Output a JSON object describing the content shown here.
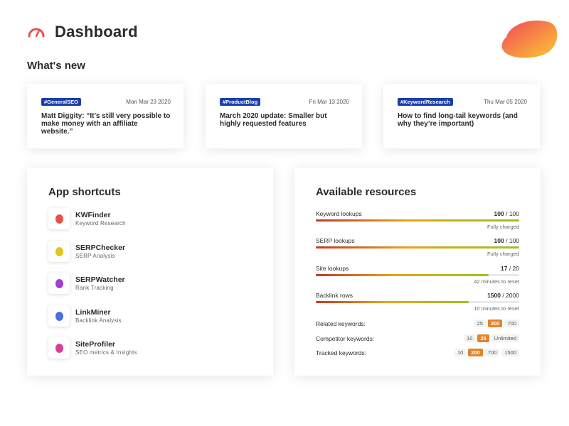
{
  "header": {
    "title": "Dashboard",
    "icon": "speedometer-icon",
    "accent": "#e8504a"
  },
  "whats_new": {
    "title": "What's new",
    "cards": [
      {
        "tag": "#GeneralSEO",
        "date": "Mon Mar 23 2020",
        "title": "Matt Diggity: “It’s still very possible to make money with an affiliate website.”"
      },
      {
        "tag": "#ProductBlog",
        "date": "Fri Mar 13 2020",
        "title": "March 2020 update: Smaller but highly requested features"
      },
      {
        "tag": "#KeywordResearch",
        "date": "Thu Mar 05 2020",
        "title": "How to find long-tail keywords (and why they’re important)"
      }
    ]
  },
  "shortcuts": {
    "title": "App shortcuts",
    "items": [
      {
        "name": "KWFinder",
        "sub": "Keyword Research",
        "color": "#e8504a"
      },
      {
        "name": "SERPChecker",
        "sub": "SERP Analysis",
        "color": "#e2c61c"
      },
      {
        "name": "SERPWatcher",
        "sub": "Rank Tracking",
        "color": "#a23fd6"
      },
      {
        "name": "LinkMiner",
        "sub": "Backlink Analysis",
        "color": "#4a6fe0"
      },
      {
        "name": "SiteProfiler",
        "sub": "SEO metrics & Insights",
        "color": "#d63f9e"
      }
    ]
  },
  "resources": {
    "title": "Available resources",
    "meters": [
      {
        "label": "Keyword lookups",
        "value": "100",
        "max": "/ 100",
        "fraction": 1.0,
        "note": "Fully charged"
      },
      {
        "label": "SERP lookups",
        "value": "100",
        "max": "/ 100",
        "fraction": 1.0,
        "note": "Fully charged"
      },
      {
        "label": "Site lookups",
        "value": "17",
        "max": "/ 20",
        "fraction": 0.85,
        "note": "42 minutes to reset"
      },
      {
        "label": "Backlink rows",
        "value": "1500",
        "max": "/ 2000",
        "fraction": 0.75,
        "note": "10 minutes to reset"
      }
    ],
    "options": [
      {
        "label": "Related keywords:",
        "chips": [
          "25",
          "200",
          "700"
        ],
        "active": "200"
      },
      {
        "label": "Competitor keywords:",
        "chips": [
          "10",
          "25",
          "Unlimited"
        ],
        "active": "25"
      },
      {
        "label": "Tracked keywords:",
        "chips": [
          "10",
          "200",
          "700",
          "1500"
        ],
        "active": "200"
      }
    ]
  }
}
